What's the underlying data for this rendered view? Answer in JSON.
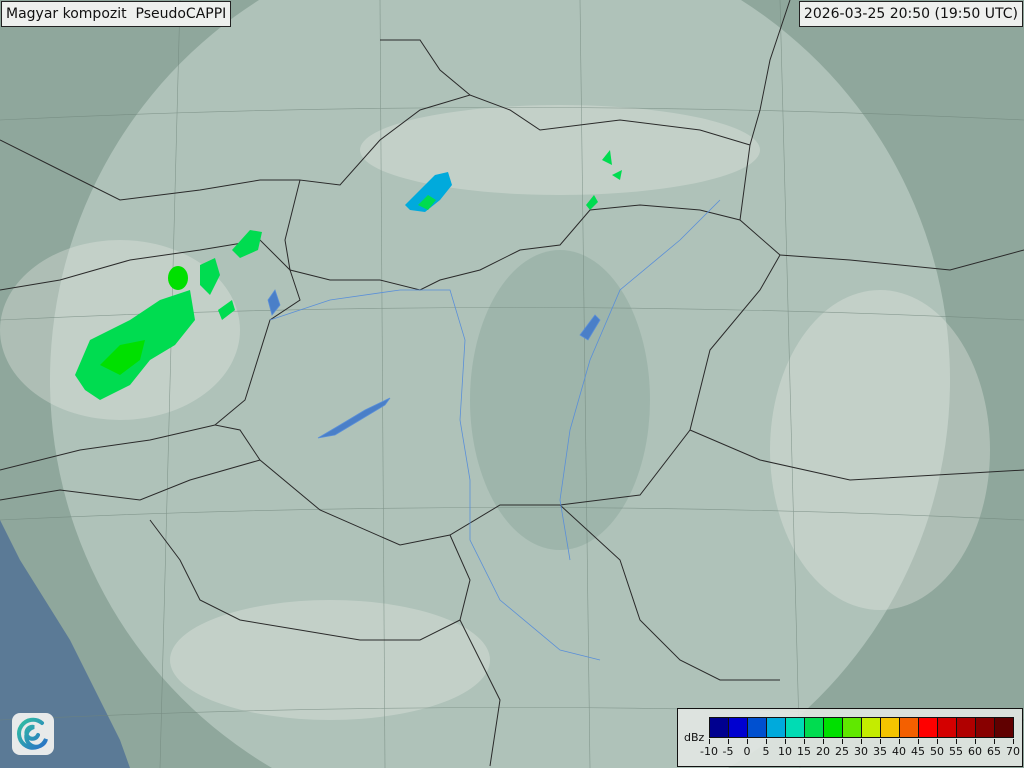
{
  "header": {
    "title": "Magyar kompozit  PseudoCAPPI",
    "timestamp": "2026-03-25 20:50 (19:50 UTC)"
  },
  "legend": {
    "unit": "dBz",
    "ticks": [
      "-10",
      "-5",
      "0",
      "5",
      "10",
      "15",
      "20",
      "25",
      "30",
      "35",
      "40",
      "45",
      "50",
      "55",
      "60",
      "65",
      "70"
    ],
    "colors": [
      "#00008f",
      "#0000d0",
      "#0050d0",
      "#00aadc",
      "#00dcb4",
      "#00dc50",
      "#00e000",
      "#60e800",
      "#c4ec00",
      "#f4c400",
      "#f46000",
      "#ff0000",
      "#d40000",
      "#b00000",
      "#880000",
      "#600000"
    ]
  },
  "map": {
    "land_color": "#8fa79c",
    "radar_coverage_color": "#c8d6cf",
    "sea_color": "#5b7a96",
    "border_color": "#2a2a2a",
    "water_color": "#4a7fc8",
    "echo_colors": {
      "light": "#00dc50",
      "medium": "#00e000",
      "blue": "#00aadc"
    }
  },
  "logo": {
    "icon": "swirl-logo-icon"
  }
}
